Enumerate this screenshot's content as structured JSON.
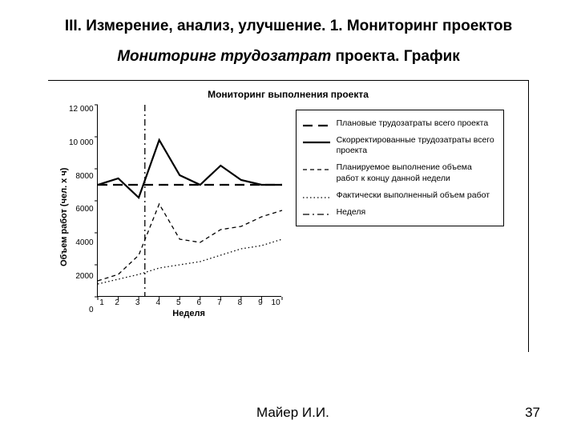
{
  "heading1": "III. Измерение, анализ, улучшение.  1. Мониторинг проектов",
  "heading2_italic": "Мониторинг трудозатрат",
  "heading2_rest": " проекта. График",
  "chart": {
    "title": "Мониторинг выполнения проекта",
    "ylabel": "Объем работ (чел. х ч)",
    "xlabel": "Неделя",
    "ylim": [
      0,
      12000
    ],
    "ytick_step": 2000,
    "yticks": [
      "12 000",
      "10 000",
      "8000",
      "6000",
      "4000",
      "2000",
      "0"
    ],
    "xlim": [
      1,
      10
    ],
    "xticks": [
      "1",
      "2",
      "3",
      "4",
      "5",
      "6",
      "7",
      "8",
      "9",
      "10"
    ],
    "colors": {
      "axis": "#000000",
      "series": "#000000",
      "background": "#ffffff"
    },
    "line_width_bold": 2.2,
    "line_width_thin": 1.3,
    "current_week": 3.3,
    "series": [
      {
        "key": "planned_total",
        "label": "Плановые трудозатраты всего проекта",
        "style": "long-dash",
        "width": 2.2,
        "data": [
          [
            1,
            7000
          ],
          [
            2,
            7000
          ],
          [
            3,
            7000
          ],
          [
            4,
            7000
          ],
          [
            5,
            7000
          ],
          [
            6,
            7000
          ],
          [
            7,
            7000
          ],
          [
            8,
            7000
          ],
          [
            9,
            7000
          ],
          [
            10,
            7000
          ]
        ]
      },
      {
        "key": "corrected_total",
        "label": "Скорректированные трудозатраты всего проекта",
        "style": "solid",
        "width": 2.2,
        "data": [
          [
            1,
            7000
          ],
          [
            2,
            7400
          ],
          [
            3,
            6200
          ],
          [
            4,
            9800
          ],
          [
            5,
            7600
          ],
          [
            6,
            7000
          ],
          [
            7,
            8200
          ],
          [
            8,
            7300
          ],
          [
            9,
            7000
          ],
          [
            10,
            7000
          ]
        ]
      },
      {
        "key": "planned_cum",
        "label": "Планируемое выполнение объема работ к концу данной недели",
        "style": "short-dash",
        "width": 1.3,
        "data": [
          [
            1,
            1000
          ],
          [
            2,
            1400
          ],
          [
            3,
            2600
          ],
          [
            4,
            5800
          ],
          [
            5,
            3600
          ],
          [
            6,
            3400
          ],
          [
            7,
            4200
          ],
          [
            8,
            4400
          ],
          [
            9,
            5000
          ],
          [
            10,
            5400
          ]
        ]
      },
      {
        "key": "actual_cum",
        "label": "Фактически выполненный объем работ",
        "style": "dotted",
        "width": 1.3,
        "data": [
          [
            1,
            800
          ],
          [
            2,
            1100
          ],
          [
            3,
            1400
          ],
          [
            4,
            1800
          ],
          [
            5,
            2000
          ],
          [
            6,
            2200
          ],
          [
            7,
            2600
          ],
          [
            8,
            3000
          ],
          [
            9,
            3200
          ],
          [
            10,
            3600
          ]
        ]
      },
      {
        "key": "week_marker",
        "label": "Неделя",
        "style": "dash-dot",
        "width": 1.3,
        "vertical_x": 3.3
      }
    ]
  },
  "footer_author": "Майер И.И.",
  "footer_page": "37"
}
